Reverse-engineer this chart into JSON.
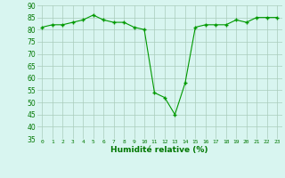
{
  "x": [
    0,
    1,
    2,
    3,
    4,
    5,
    6,
    7,
    8,
    9,
    10,
    11,
    12,
    13,
    14,
    15,
    16,
    17,
    18,
    19,
    20,
    21,
    22,
    23
  ],
  "y": [
    81,
    82,
    82,
    83,
    84,
    86,
    84,
    83,
    83,
    81,
    80,
    54,
    52,
    45,
    58,
    81,
    82,
    82,
    82,
    84,
    83,
    85,
    85,
    85
  ],
  "line_color": "#009900",
  "marker_color": "#009900",
  "bg_color": "#d8f5f0",
  "grid_color": "#aaccbb",
  "xlabel": "Humidité relative (%)",
  "xlabel_color": "#007700",
  "tick_color": "#007700",
  "ylim": [
    35,
    90
  ],
  "yticks": [
    35,
    40,
    45,
    50,
    55,
    60,
    65,
    70,
    75,
    80,
    85,
    90
  ],
  "xticks": [
    0,
    1,
    2,
    3,
    4,
    5,
    6,
    7,
    8,
    9,
    10,
    11,
    12,
    13,
    14,
    15,
    16,
    17,
    18,
    19,
    20,
    21,
    22,
    23
  ]
}
